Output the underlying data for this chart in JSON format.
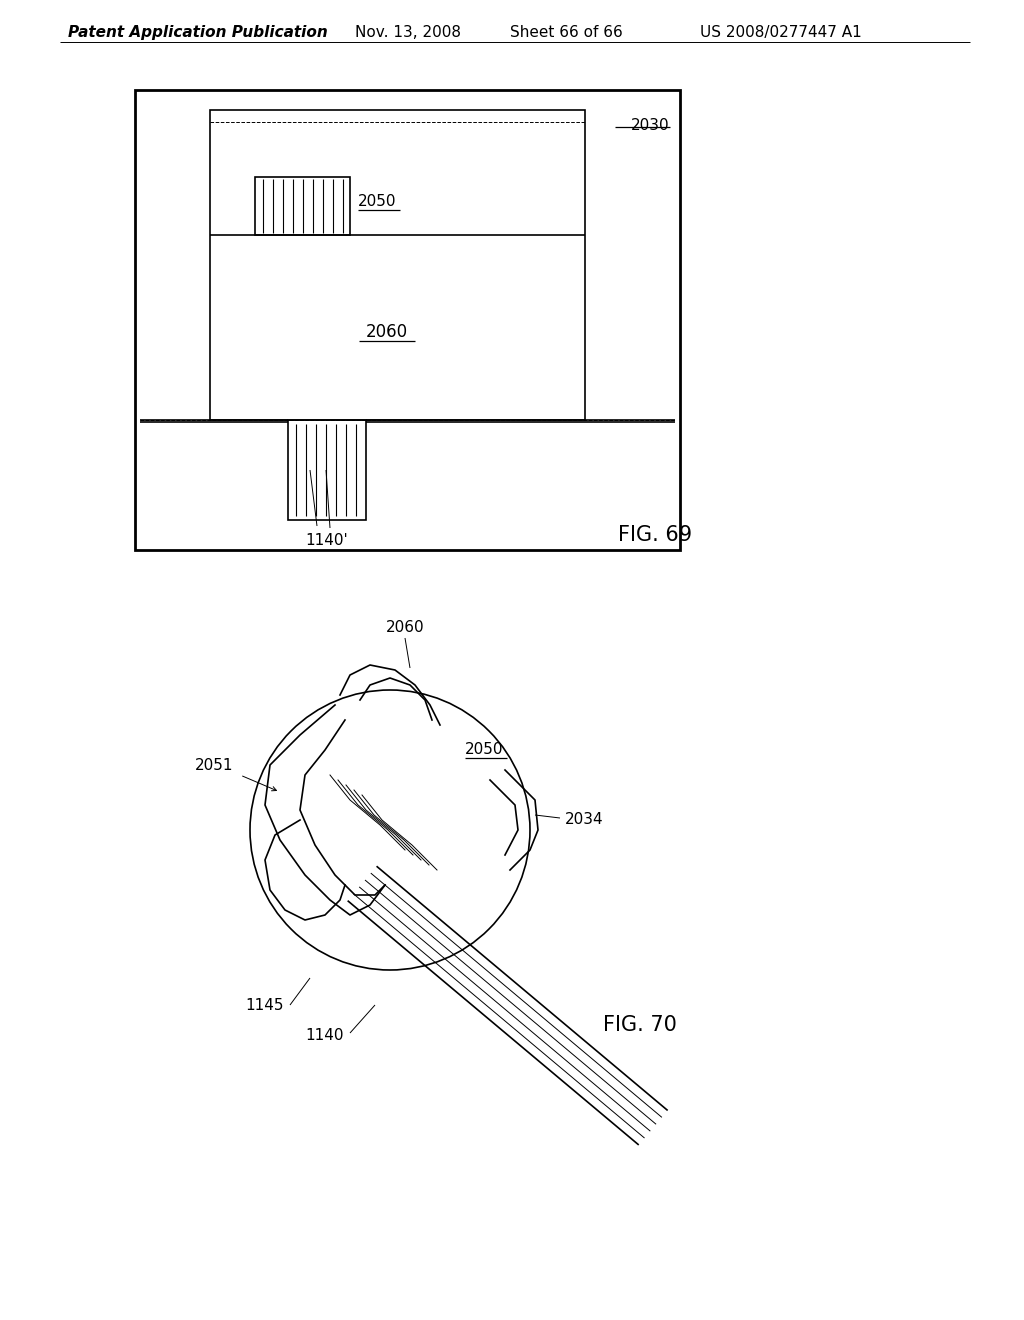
{
  "bg_color": "#ffffff",
  "header_text": "Patent Application Publication",
  "header_date": "Nov. 13, 2008",
  "header_sheet": "Sheet 66 of 66",
  "header_patent": "US 2008/0277447 A1",
  "fig69_label": "FIG. 69",
  "fig70_label": "FIG. 70",
  "label_fontsize": 14,
  "annotation_fontsize": 11,
  "header_fontsize": 11,
  "text_color": "#000000",
  "line_color": "#000000",
  "line_width": 1.2,
  "thin_line": 0.7,
  "thick_line": 2.0
}
